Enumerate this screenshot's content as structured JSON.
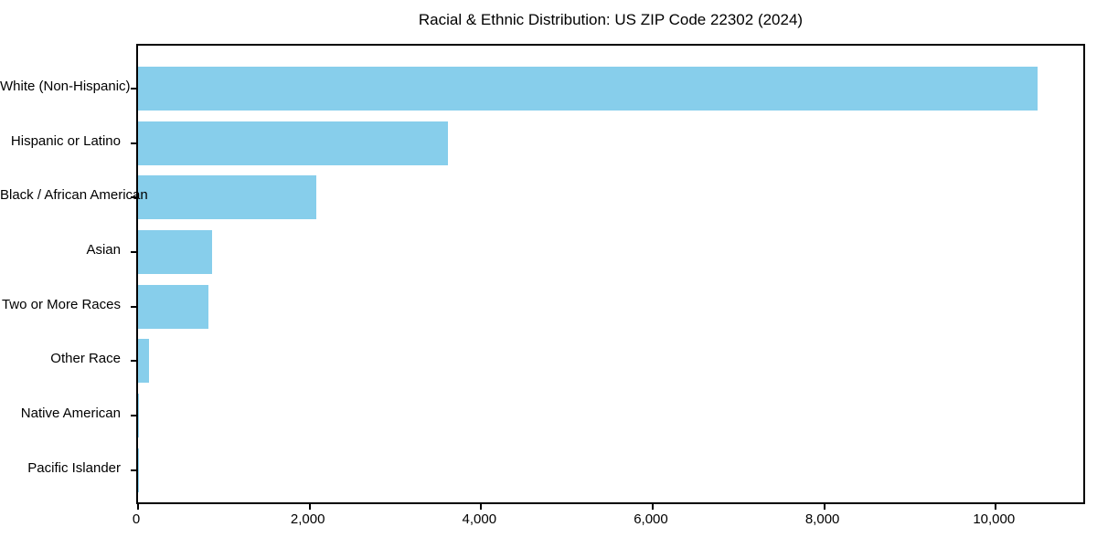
{
  "title": "Racial & Ethnic Distribution: US ZIP Code 22302 (2024)",
  "colors": {
    "bar": "#87ceeb",
    "background": "#ffffff",
    "spine": "#000000",
    "text": "#000000"
  },
  "chart_data": {
    "type": "bar",
    "orientation": "horizontal",
    "title": "Racial & Ethnic Distribution: US ZIP Code 22302 (2024)",
    "xlabel": "",
    "ylabel": "",
    "categories": [
      "White (Non-Hispanic)",
      "Hispanic or Latino",
      "Black / African American",
      "Asian",
      "Two or More Races",
      "Other Race",
      "Native American",
      "Pacific Islander"
    ],
    "values": [
      10490,
      3610,
      2080,
      860,
      825,
      130,
      15,
      5
    ],
    "xlim": [
      0,
      11020
    ],
    "x_ticks": [
      0,
      2000,
      4000,
      6000,
      8000,
      10000
    ],
    "x_tick_labels": [
      "0",
      "2,000",
      "4,000",
      "6,000",
      "8,000",
      "10,000"
    ],
    "bar_color": "#87ceeb",
    "grid": false,
    "legend": null
  }
}
